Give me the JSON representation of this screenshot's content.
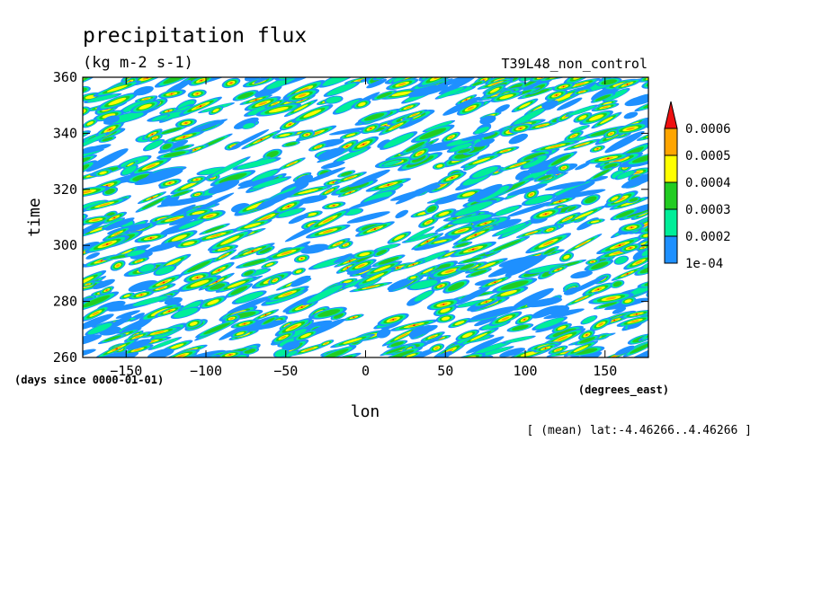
{
  "chart_data": {
    "type": "heatmap",
    "title": "precipitation flux",
    "units": "(kg m-2 s-1)",
    "run_label": "T39L48_non_control",
    "xlabel": "lon",
    "x_units": "(degrees_east)",
    "ylabel": "time",
    "y_units": "(days since 0000-01-01)",
    "footnote": "[ (mean) lat:-4.46266..4.46266 ]",
    "xlim": [
      -177.1875,
      177.1875
    ],
    "ylim": [
      260,
      360
    ],
    "x_ticks": [
      -150,
      -100,
      -50,
      0,
      50,
      100,
      150
    ],
    "x_tick_labels": [
      "−150",
      "−100",
      "−50",
      "0",
      "50",
      "100",
      "150"
    ],
    "y_ticks": [
      260,
      280,
      300,
      320,
      340,
      360
    ],
    "y_tick_labels": [
      "260",
      "280",
      "300",
      "320",
      "340",
      "360"
    ],
    "contour_levels": [
      0.0001,
      0.0002,
      0.0003,
      0.0004,
      0.0005,
      0.0006
    ],
    "colorbar_labels": [
      "1e-04",
      "0.0002",
      "0.0003",
      "0.0004",
      "0.0005",
      "0.0006"
    ],
    "colors": [
      "#1e90ff",
      "#00ee99",
      "#22cc22",
      "#ffff00",
      "#ffa500",
      "#ee1111"
    ],
    "background_color": "#ffffff",
    "pattern": "dense eastward-tilted streaks of intermittent precipitation across all longitudes",
    "grid": false
  }
}
